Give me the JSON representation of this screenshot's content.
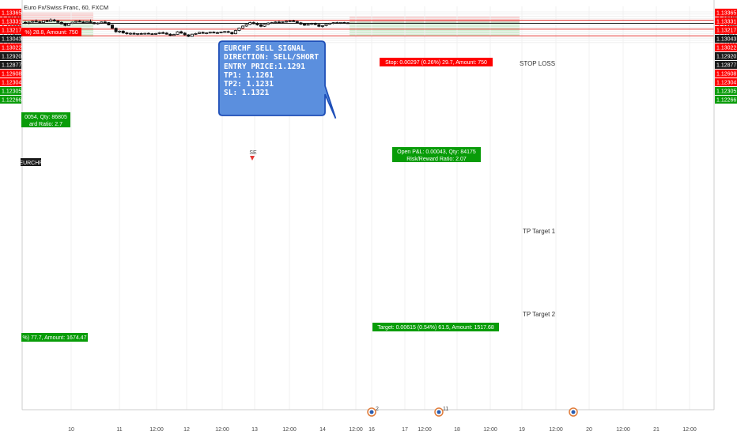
{
  "symbol_title": "Euro Fx/Swiss Franc, 60, FXCM",
  "signal_box": {
    "lines": [
      "EURCHF SELL SIGNAL",
      "DIRECTION: SELL/SHORT",
      "ENTRY PRICE:1.1291",
      "TP1: 1.1261",
      "TP2: 1.1231",
      "SL: 1.1321"
    ],
    "fill": "#5b8fde"
  },
  "labels": {
    "stop_loss": "STOP LOSS",
    "tp1": "TP Target 1",
    "tp2": "TP Target 2",
    "stop_info": "Stop: 0.00297 (0.26%) 29.7, Amount: 750",
    "open_pnl": "Open P&L: 0.00043, Qty: 84175",
    "rr": "Risk/Reward Ratio: 2.07",
    "target_info": "Target: 0.00615 (0.54%) 61.5, Amount: 1517.68",
    "left_stop_info": "%) 28.8, Amount: 750",
    "left_pnl": "0054, Qty: 86805",
    "left_rr": "ard Ratio: 2.7",
    "left_target_info": "%) 77.7, Amount: 1674.47",
    "left_symbol": "EURCHF",
    "signal_marker": "SE"
  },
  "events": [
    "2",
    "11",
    ""
  ],
  "colors": {
    "red_zone": "#fbcfcf",
    "green_zone": "#d2efd2",
    "red_line": "#e53935",
    "badge_red": "#ff0000",
    "badge_green": "#089c08",
    "badge_black": "#1a1a1a",
    "candle": "#111111"
  },
  "chart_data": {
    "type": "candlestick",
    "title": "Euro Fx/Swiss Franc, 60, FXCM",
    "x_ticks": [
      "10",
      "11",
      "12:00",
      "12",
      "12:00",
      "13",
      "12:00",
      "14",
      "12:00",
      "16",
      "17",
      "12:00",
      "18",
      "12:00",
      "19",
      "12:00",
      "20",
      "12:00",
      "21",
      "12:00"
    ],
    "y_ticks": [
      "1.13400",
      "1.13300",
      "1.13200",
      "1.13100",
      "1.12900",
      "1.12800",
      "1.12700",
      "1.12500",
      "1.12400",
      "1.12200",
      "1.12100",
      "1.12000"
    ],
    "ylim": [
      1.1195,
      1.1347
    ],
    "price_badges_right": [
      {
        "value": "1.13365",
        "kind": "red"
      },
      {
        "value": "1.13331",
        "kind": "red"
      },
      {
        "value": "1.13217",
        "kind": "red"
      },
      {
        "value": "1.13043",
        "kind": "black"
      },
      {
        "value": "1.13022",
        "kind": "red"
      },
      {
        "value": "1.12920",
        "kind": "black"
      },
      {
        "value": "1.12877",
        "kind": "black"
      },
      {
        "value": "1.12608",
        "kind": "red"
      },
      {
        "value": "1.12304",
        "kind": "red"
      },
      {
        "value": "1.12305",
        "kind": "green"
      },
      {
        "value": "1.12266",
        "kind": "green"
      }
    ],
    "price_badges_left": [
      {
        "value": "1.13365",
        "kind": "red"
      },
      {
        "value": "1.13331",
        "kind": "red"
      },
      {
        "value": "1.13217",
        "kind": "red"
      },
      {
        "value": "1.13043",
        "kind": "black"
      },
      {
        "value": "1.13022",
        "kind": "red"
      },
      {
        "value": "1.12920",
        "kind": "black"
      },
      {
        "value": "1.12877",
        "kind": "black"
      },
      {
        "value": "1.12608",
        "kind": "red"
      },
      {
        "value": "1.12304",
        "kind": "red"
      },
      {
        "value": "1.12305",
        "kind": "green"
      },
      {
        "value": "1.12266",
        "kind": "green"
      }
    ],
    "horizontal_lines": [
      {
        "value": 1.13022,
        "kind": "red"
      },
      {
        "value": 1.12877,
        "kind": "black"
      },
      {
        "value": 1.12608,
        "kind": "red"
      },
      {
        "value": 1.12304,
        "kind": "red"
      }
    ],
    "short_position": {
      "entry": 1.1292,
      "stop": 1.13217,
      "target": 1.12304
    },
    "candles": [
      {
        "o": 1.1292,
        "h": 1.1298,
        "l": 1.1285,
        "c": 1.1289
      },
      {
        "o": 1.1289,
        "h": 1.1296,
        "l": 1.1284,
        "c": 1.1293
      },
      {
        "o": 1.1293,
        "h": 1.13,
        "l": 1.129,
        "c": 1.1297
      },
      {
        "o": 1.1297,
        "h": 1.1305,
        "l": 1.1293,
        "c": 1.1295
      },
      {
        "o": 1.1295,
        "h": 1.1299,
        "l": 1.1288,
        "c": 1.1291
      },
      {
        "o": 1.1291,
        "h": 1.1302,
        "l": 1.1289,
        "c": 1.13
      },
      {
        "o": 1.13,
        "h": 1.1304,
        "l": 1.1293,
        "c": 1.1296
      },
      {
        "o": 1.1296,
        "h": 1.131,
        "l": 1.1294,
        "c": 1.1303
      },
      {
        "o": 1.1303,
        "h": 1.1308,
        "l": 1.1295,
        "c": 1.1298
      },
      {
        "o": 1.1298,
        "h": 1.1302,
        "l": 1.1288,
        "c": 1.1292
      },
      {
        "o": 1.1292,
        "h": 1.1296,
        "l": 1.1283,
        "c": 1.1285
      },
      {
        "o": 1.1285,
        "h": 1.129,
        "l": 1.1274,
        "c": 1.1278
      },
      {
        "o": 1.1278,
        "h": 1.1289,
        "l": 1.1276,
        "c": 1.1287
      },
      {
        "o": 1.1287,
        "h": 1.1295,
        "l": 1.1285,
        "c": 1.1293
      },
      {
        "o": 1.1293,
        "h": 1.1299,
        "l": 1.129,
        "c": 1.1297
      },
      {
        "o": 1.1297,
        "h": 1.1303,
        "l": 1.1292,
        "c": 1.1294
      },
      {
        "o": 1.1294,
        "h": 1.1298,
        "l": 1.1288,
        "c": 1.129
      },
      {
        "o": 1.129,
        "h": 1.1297,
        "l": 1.1287,
        "c": 1.1295
      },
      {
        "o": 1.1295,
        "h": 1.1305,
        "l": 1.129,
        "c": 1.1291
      },
      {
        "o": 1.1291,
        "h": 1.1294,
        "l": 1.1283,
        "c": 1.1286
      },
      {
        "o": 1.1286,
        "h": 1.1292,
        "l": 1.1282,
        "c": 1.1289
      },
      {
        "o": 1.1289,
        "h": 1.1296,
        "l": 1.1286,
        "c": 1.1294
      },
      {
        "o": 1.1294,
        "h": 1.1299,
        "l": 1.1289,
        "c": 1.1291
      },
      {
        "o": 1.1291,
        "h": 1.1293,
        "l": 1.1278,
        "c": 1.128
      },
      {
        "o": 1.128,
        "h": 1.1283,
        "l": 1.1262,
        "c": 1.1265
      },
      {
        "o": 1.1265,
        "h": 1.1268,
        "l": 1.1245,
        "c": 1.1249
      },
      {
        "o": 1.1249,
        "h": 1.1255,
        "l": 1.1243,
        "c": 1.1252
      },
      {
        "o": 1.1252,
        "h": 1.1256,
        "l": 1.124,
        "c": 1.1244
      },
      {
        "o": 1.1244,
        "h": 1.1248,
        "l": 1.1236,
        "c": 1.124
      },
      {
        "o": 1.124,
        "h": 1.1246,
        "l": 1.1235,
        "c": 1.1242
      },
      {
        "o": 1.1242,
        "h": 1.1247,
        "l": 1.1236,
        "c": 1.1238
      },
      {
        "o": 1.1238,
        "h": 1.1243,
        "l": 1.1234,
        "c": 1.1241
      },
      {
        "o": 1.1241,
        "h": 1.1245,
        "l": 1.1237,
        "c": 1.1239
      },
      {
        "o": 1.1239,
        "h": 1.1244,
        "l": 1.1236,
        "c": 1.1242
      },
      {
        "o": 1.1242,
        "h": 1.1246,
        "l": 1.1238,
        "c": 1.124
      },
      {
        "o": 1.124,
        "h": 1.1243,
        "l": 1.1236,
        "c": 1.1238
      },
      {
        "o": 1.1238,
        "h": 1.1244,
        "l": 1.1235,
        "c": 1.1241
      },
      {
        "o": 1.1241,
        "h": 1.1248,
        "l": 1.1238,
        "c": 1.1245
      },
      {
        "o": 1.1245,
        "h": 1.125,
        "l": 1.124,
        "c": 1.1243
      },
      {
        "o": 1.1243,
        "h": 1.1247,
        "l": 1.1236,
        "c": 1.1238
      },
      {
        "o": 1.1238,
        "h": 1.1242,
        "l": 1.1229,
        "c": 1.1232
      },
      {
        "o": 1.1232,
        "h": 1.124,
        "l": 1.123,
        "c": 1.1237
      },
      {
        "o": 1.1237,
        "h": 1.1252,
        "l": 1.1235,
        "c": 1.1249
      },
      {
        "o": 1.1249,
        "h": 1.1254,
        "l": 1.124,
        "c": 1.1243
      },
      {
        "o": 1.1243,
        "h": 1.1247,
        "l": 1.1232,
        "c": 1.1235
      },
      {
        "o": 1.1235,
        "h": 1.1238,
        "l": 1.1225,
        "c": 1.1228
      },
      {
        "o": 1.1228,
        "h": 1.124,
        "l": 1.1226,
        "c": 1.1238
      },
      {
        "o": 1.1238,
        "h": 1.1244,
        "l": 1.1235,
        "c": 1.1241
      },
      {
        "o": 1.1241,
        "h": 1.1249,
        "l": 1.1239,
        "c": 1.1246
      },
      {
        "o": 1.1246,
        "h": 1.125,
        "l": 1.124,
        "c": 1.1242
      },
      {
        "o": 1.1242,
        "h": 1.1246,
        "l": 1.1238,
        "c": 1.1244
      },
      {
        "o": 1.1244,
        "h": 1.1249,
        "l": 1.1241,
        "c": 1.1247
      },
      {
        "o": 1.1247,
        "h": 1.1251,
        "l": 1.1243,
        "c": 1.1245
      },
      {
        "o": 1.1245,
        "h": 1.1249,
        "l": 1.1241,
        "c": 1.1244
      },
      {
        "o": 1.1244,
        "h": 1.125,
        "l": 1.1242,
        "c": 1.1248
      },
      {
        "o": 1.1248,
        "h": 1.1253,
        "l": 1.1245,
        "c": 1.125
      },
      {
        "o": 1.125,
        "h": 1.1254,
        "l": 1.1244,
        "c": 1.1246
      },
      {
        "o": 1.1246,
        "h": 1.1249,
        "l": 1.1236,
        "c": 1.124
      },
      {
        "o": 1.124,
        "h": 1.1258,
        "l": 1.1238,
        "c": 1.1255
      },
      {
        "o": 1.1255,
        "h": 1.1268,
        "l": 1.1252,
        "c": 1.1266
      },
      {
        "o": 1.1266,
        "h": 1.1278,
        "l": 1.1263,
        "c": 1.1275
      },
      {
        "o": 1.1275,
        "h": 1.1286,
        "l": 1.1272,
        "c": 1.1283
      },
      {
        "o": 1.1283,
        "h": 1.1295,
        "l": 1.128,
        "c": 1.1291
      },
      {
        "o": 1.1291,
        "h": 1.1296,
        "l": 1.1283,
        "c": 1.1286
      },
      {
        "o": 1.1286,
        "h": 1.1292,
        "l": 1.1277,
        "c": 1.1281
      },
      {
        "o": 1.1281,
        "h": 1.1288,
        "l": 1.127,
        "c": 1.1274
      },
      {
        "o": 1.1274,
        "h": 1.1285,
        "l": 1.1271,
        "c": 1.1283
      },
      {
        "o": 1.1283,
        "h": 1.1292,
        "l": 1.128,
        "c": 1.1289
      },
      {
        "o": 1.1289,
        "h": 1.1294,
        "l": 1.1285,
        "c": 1.1291
      },
      {
        "o": 1.1291,
        "h": 1.1297,
        "l": 1.1287,
        "c": 1.1294
      },
      {
        "o": 1.1294,
        "h": 1.1299,
        "l": 1.129,
        "c": 1.1292
      },
      {
        "o": 1.1292,
        "h": 1.1297,
        "l": 1.1288,
        "c": 1.1295
      },
      {
        "o": 1.1295,
        "h": 1.13,
        "l": 1.1291,
        "c": 1.1297
      },
      {
        "o": 1.1297,
        "h": 1.1303,
        "l": 1.1294,
        "c": 1.1299
      },
      {
        "o": 1.1299,
        "h": 1.1304,
        "l": 1.1295,
        "c": 1.1296
      },
      {
        "o": 1.1296,
        "h": 1.1299,
        "l": 1.1288,
        "c": 1.129
      },
      {
        "o": 1.129,
        "h": 1.1294,
        "l": 1.1281,
        "c": 1.1284
      },
      {
        "o": 1.1284,
        "h": 1.1288,
        "l": 1.1276,
        "c": 1.1279
      },
      {
        "o": 1.1279,
        "h": 1.1286,
        "l": 1.1277,
        "c": 1.1284
      },
      {
        "o": 1.1284,
        "h": 1.129,
        "l": 1.128,
        "c": 1.1287
      },
      {
        "o": 1.1287,
        "h": 1.1291,
        "l": 1.1279,
        "c": 1.1282
      },
      {
        "o": 1.1282,
        "h": 1.1285,
        "l": 1.127,
        "c": 1.1274
      },
      {
        "o": 1.1274,
        "h": 1.128,
        "l": 1.1268,
        "c": 1.1277
      },
      {
        "o": 1.1277,
        "h": 1.1286,
        "l": 1.1274,
        "c": 1.1284
      },
      {
        "o": 1.1284,
        "h": 1.129,
        "l": 1.1281,
        "c": 1.1288
      },
      {
        "o": 1.1288,
        "h": 1.1293,
        "l": 1.1284,
        "c": 1.1291
      },
      {
        "o": 1.1291,
        "h": 1.1295,
        "l": 1.1287,
        "c": 1.1289
      },
      {
        "o": 1.1289,
        "h": 1.1293,
        "l": 1.1285,
        "c": 1.1292
      },
      {
        "o": 1.1292,
        "h": 1.1294,
        "l": 1.1287,
        "c": 1.129
      },
      {
        "o": 1.129,
        "h": 1.1293,
        "l": 1.1286,
        "c": 1.1288
      }
    ]
  }
}
